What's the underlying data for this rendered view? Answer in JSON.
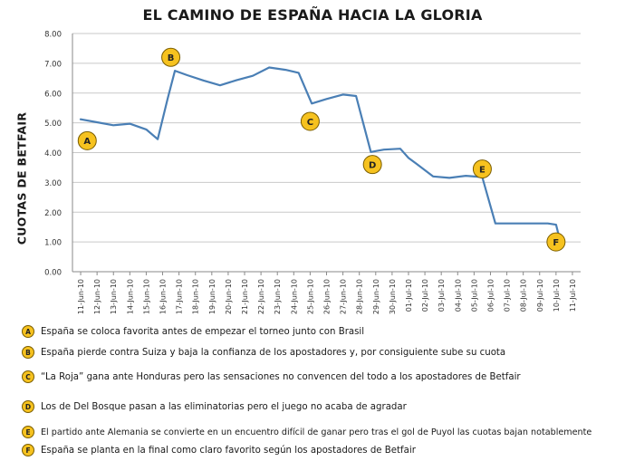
{
  "chart_data": {
    "type": "line",
    "title": "EL CAMINO DE ESPAÑA HACIA LA GLORIA",
    "ylabel": "CUOTAS DE BETFAIR",
    "xlabel": "",
    "ylim": [
      0,
      8
    ],
    "yticks": [
      "0.00",
      "1.00",
      "2.00",
      "3.00",
      "4.00",
      "5.00",
      "6.00",
      "7.00",
      "8.00"
    ],
    "categories": [
      "11-Jun-10",
      "12-Jun-10",
      "13-Jun-10",
      "14-Jun-10",
      "15-Jun-10",
      "16-Jun-10",
      "17-Jun-10",
      "18-Jun-10",
      "19-Jun-10",
      "20-Jun-10",
      "21-Jun-10",
      "22-Jun-10",
      "23-Jun-10",
      "24-Jun-10",
      "25-Jun-10",
      "26-Jun-10",
      "27-Jun-10",
      "28-Jun-10",
      "29-Jun-10",
      "30-Jun-10",
      "01-Jul-10",
      "02-Jul-10",
      "03-Jul-10",
      "04-Jul-10",
      "05-Jul-10",
      "06-Jul-10",
      "07-Jul-10",
      "08-Jul-10",
      "09-Jul-10",
      "10-Jul-10",
      "11-Jul-10"
    ],
    "points": [
      {
        "x": 0.0,
        "y": 5.12
      },
      {
        "x": 1.0,
        "y": 5.02
      },
      {
        "x": 2.0,
        "y": 4.92
      },
      {
        "x": 3.0,
        "y": 4.97
      },
      {
        "x": 4.0,
        "y": 4.78
      },
      {
        "x": 4.7,
        "y": 4.45
      },
      {
        "x": 5.3,
        "y": 5.8
      },
      {
        "x": 5.75,
        "y": 6.75
      },
      {
        "x": 6.5,
        "y": 6.6
      },
      {
        "x": 7.5,
        "y": 6.42
      },
      {
        "x": 8.5,
        "y": 6.26
      },
      {
        "x": 9.5,
        "y": 6.43
      },
      {
        "x": 10.5,
        "y": 6.58
      },
      {
        "x": 11.5,
        "y": 6.86
      },
      {
        "x": 12.5,
        "y": 6.78
      },
      {
        "x": 13.3,
        "y": 6.68
      },
      {
        "x": 14.1,
        "y": 5.65
      },
      {
        "x": 15.0,
        "y": 5.8
      },
      {
        "x": 16.0,
        "y": 5.95
      },
      {
        "x": 16.8,
        "y": 5.9
      },
      {
        "x": 17.7,
        "y": 4.02
      },
      {
        "x": 18.5,
        "y": 4.1
      },
      {
        "x": 19.5,
        "y": 4.13
      },
      {
        "x": 20.0,
        "y": 3.82
      },
      {
        "x": 20.5,
        "y": 3.62
      },
      {
        "x": 21.5,
        "y": 3.2
      },
      {
        "x": 22.5,
        "y": 3.15
      },
      {
        "x": 23.5,
        "y": 3.22
      },
      {
        "x": 24.5,
        "y": 3.18
      },
      {
        "x": 25.3,
        "y": 1.62
      },
      {
        "x": 26.5,
        "y": 1.62
      },
      {
        "x": 27.5,
        "y": 1.62
      },
      {
        "x": 28.5,
        "y": 1.62
      },
      {
        "x": 29.0,
        "y": 1.58
      },
      {
        "x": 29.15,
        "y": 1.25
      }
    ],
    "grid": true,
    "line_color": "#4a7fb5",
    "annotations": [
      {
        "letter": "A",
        "x": 0.4,
        "y": 4.4
      },
      {
        "letter": "B",
        "x": 5.5,
        "y": 7.2
      },
      {
        "letter": "C",
        "x": 14.0,
        "y": 5.05
      },
      {
        "letter": "D",
        "x": 17.8,
        "y": 3.6
      },
      {
        "letter": "E",
        "x": 24.5,
        "y": 3.45
      },
      {
        "letter": "F",
        "x": 29.0,
        "y": 1.0
      }
    ]
  },
  "legend": [
    {
      "letter": "A",
      "text": "España se coloca favorita antes de empezar el torneo  junto con Brasil"
    },
    {
      "letter": "B",
      "text": "España pierde contra Suiza y baja la confianza de los apostadores y, por consiguiente sube su cuota"
    },
    {
      "letter": "C",
      "text": "“La Roja” gana ante Honduras pero las sensaciones  no convencen del todo a los apostadores de Betfair"
    },
    {
      "letter": "D",
      "text": "Los de Del Bosque pasan a las eliminatorias pero el juego no acaba de agradar"
    },
    {
      "letter": "E",
      "text": "El partido ante Alemania se convierte en un encuentro difícil de ganar pero tras el gol de Puyol las cuotas bajan notablemente"
    },
    {
      "letter": "F",
      "text": "España se planta en la final como claro favorito según los apostadores de Betfair"
    }
  ],
  "colors": {
    "marker_fill": "#f6c21f",
    "marker_stroke": "#7a5d00",
    "grid": "#c9c9c9",
    "axis": "#8a8a8a"
  }
}
